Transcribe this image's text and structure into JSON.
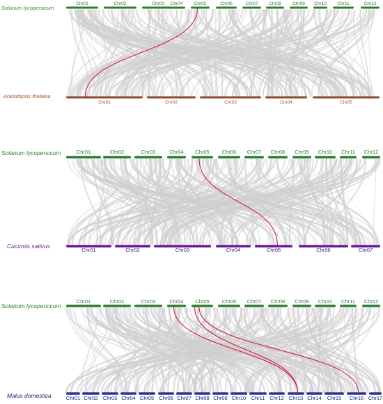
{
  "panels": [
    {
      "top_species": {
        "name": "Solanum lycopersicum",
        "color": "#3a8a2e"
      },
      "bottom_species": {
        "name": "Arabidopsis thaliana",
        "color": "#a0522d"
      },
      "top_chromosomes": [
        "Chr01",
        "Chr02",
        "Chr03",
        "Chr04",
        "Chr05",
        "Chr06",
        "Chr07",
        "Chr08",
        "Chr09",
        "Chr10",
        "Chr11",
        "Chr12"
      ],
      "bottom_chromosomes": [
        "Chr01",
        "Chr02",
        "Chr03",
        "Chr04",
        "Chr05"
      ],
      "top_bar_color": "#2e7d32",
      "bottom_bar_color": "#8b4a2b",
      "top_label_color": "#2e7d32",
      "bottom_label_color": "#a0522d",
      "highlight_links": [
        {
          "from": "Chr05",
          "to": "Chr01"
        }
      ]
    },
    {
      "top_species": {
        "name": "Solanum lycopersicum",
        "color": "#2e7d32"
      },
      "bottom_species": {
        "name": "Cucumis sativus",
        "color": "#5b1a8a"
      },
      "top_chromosomes": [
        "Chr01",
        "Chr02",
        "Chr03",
        "Chr04",
        "Chr05",
        "Chr06",
        "Chr07",
        "Chr08",
        "Chr09",
        "Chr10",
        "Chr11",
        "Chr12"
      ],
      "bottom_chromosomes": [
        "Chr01",
        "Chr02",
        "Chr03",
        "Chr04",
        "Chr05",
        "Chr06",
        "Chr07"
      ],
      "top_bar_color": "#2e7d32",
      "bottom_bar_color": "#6a1b9a",
      "top_label_color": "#2e7d32",
      "bottom_label_color": "#4a148c",
      "highlight_links": [
        {
          "from": "Chr05",
          "to": "Chr05"
        }
      ]
    },
    {
      "top_species": {
        "name": "Solanum lycopersicum",
        "color": "#2e7d32"
      },
      "bottom_species": {
        "name": "Malus domestica",
        "color": "#1a237e"
      },
      "top_chromosomes": [
        "Chr01",
        "Chr02",
        "Chr03",
        "Chr04",
        "Chr05",
        "Chr06",
        "Chr07",
        "Chr08",
        "Chr09",
        "Chr10",
        "Chr11",
        "Chr12"
      ],
      "bottom_chromosomes": [
        "Chr01",
        "Chr02",
        "Chr03",
        "Chr04",
        "Chr05",
        "Chr06",
        "Chr07",
        "Chr08",
        "Chr09",
        "Chr10",
        "Chr11",
        "Chr12",
        "Chr13",
        "Chr14",
        "Chr15",
        "Chr16",
        "Chr17"
      ],
      "top_bar_color": "#2e7d32",
      "bottom_bar_color": "#283593",
      "top_label_color": "#2e7d32",
      "bottom_label_color": "#1a237e",
      "highlight_links": [
        {
          "from": "Chr04",
          "to": "Chr13"
        },
        {
          "from": "Chr05",
          "to": "Chr13"
        },
        {
          "from": "Chr05",
          "to": "Chr16"
        }
      ]
    }
  ],
  "colors": {
    "background_link": "#cfcfcf",
    "highlight_link": "#d81b45"
  }
}
